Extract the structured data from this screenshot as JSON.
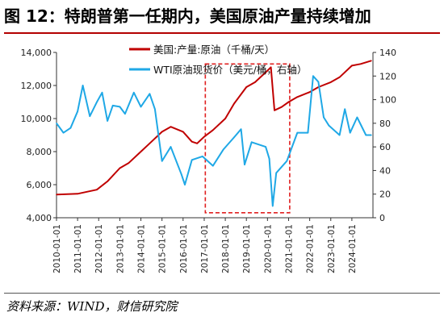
{
  "title": "图 12：特朗普第一任期内，美国原油产量持续增加",
  "source": "资料来源：WIND，财信研究院",
  "colors": {
    "us_production": "#c00000",
    "wti": "#1fa8e6",
    "highlight_box": "#e02020",
    "title_rule": "#b30000"
  },
  "chart_data": {
    "type": "line",
    "title": "",
    "legend_position": "top",
    "x_ticks": [
      "2010-01-01",
      "2011-01-01",
      "2012-01-01",
      "2013-01-01",
      "2014-01-01",
      "2015-01-01",
      "2016-01-01",
      "2017-01-01",
      "2018-01-01",
      "2019-01-01",
      "2020-01-01",
      "2021-01-01",
      "2022-01-01",
      "2023-01-01",
      "2024-01-01"
    ],
    "x_range": [
      "2010-01-01",
      "2024-12-31"
    ],
    "y_left": {
      "min": 4000,
      "max": 14000,
      "ticks": [
        "4,000",
        "6,000",
        "8,000",
        "10,000",
        "12,000",
        "14,000"
      ]
    },
    "y_right": {
      "min": 0,
      "max": 140,
      "ticks": [
        "0",
        "20",
        "40",
        "60",
        "80",
        "100",
        "120",
        "140"
      ]
    },
    "highlight_period": [
      "2017-01-20",
      "2021-01-20"
    ],
    "series": [
      {
        "name": "美国:产量:原油（千桶/天）",
        "axis": "left",
        "points": [
          [
            "2010-01-01",
            5400
          ],
          [
            "2011-01-01",
            5450
          ],
          [
            "2011-12-01",
            5700
          ],
          [
            "2012-06-01",
            6200
          ],
          [
            "2013-01-01",
            7000
          ],
          [
            "2013-06-01",
            7300
          ],
          [
            "2014-01-01",
            8000
          ],
          [
            "2014-06-01",
            8500
          ],
          [
            "2015-01-01",
            9200
          ],
          [
            "2015-06-01",
            9500
          ],
          [
            "2016-01-01",
            9200
          ],
          [
            "2016-06-01",
            8600
          ],
          [
            "2016-09-01",
            8500
          ],
          [
            "2017-01-01",
            8900
          ],
          [
            "2017-06-01",
            9300
          ],
          [
            "2018-01-01",
            10000
          ],
          [
            "2018-06-01",
            10900
          ],
          [
            "2019-01-01",
            11900
          ],
          [
            "2019-06-01",
            12200
          ],
          [
            "2020-01-01",
            12900
          ],
          [
            "2020-03-01",
            13100
          ],
          [
            "2020-05-01",
            10500
          ],
          [
            "2020-09-01",
            10700
          ],
          [
            "2021-01-01",
            11000
          ],
          [
            "2021-06-01",
            11300
          ],
          [
            "2022-01-01",
            11600
          ],
          [
            "2022-06-01",
            11900
          ],
          [
            "2023-01-01",
            12200
          ],
          [
            "2023-06-01",
            12500
          ],
          [
            "2024-01-01",
            13200
          ],
          [
            "2024-06-01",
            13300
          ],
          [
            "2024-12-01",
            13500
          ]
        ]
      },
      {
        "name": "WTI原油现货价（美元/桶，右轴）",
        "axis": "right",
        "points": [
          [
            "2010-01-01",
            80
          ],
          [
            "2010-05-01",
            72
          ],
          [
            "2010-09-01",
            76
          ],
          [
            "2011-01-01",
            90
          ],
          [
            "2011-04-01",
            112
          ],
          [
            "2011-08-01",
            86
          ],
          [
            "2011-12-01",
            98
          ],
          [
            "2012-03-01",
            106
          ],
          [
            "2012-06-01",
            82
          ],
          [
            "2012-09-01",
            95
          ],
          [
            "2013-01-01",
            94
          ],
          [
            "2013-04-01",
            88
          ],
          [
            "2013-09-01",
            106
          ],
          [
            "2014-01-01",
            94
          ],
          [
            "2014-06-01",
            105
          ],
          [
            "2014-09-01",
            92
          ],
          [
            "2015-01-01",
            48
          ],
          [
            "2015-06-01",
            60
          ],
          [
            "2015-12-01",
            37
          ],
          [
            "2016-02-01",
            28
          ],
          [
            "2016-06-01",
            49
          ],
          [
            "2016-12-01",
            52
          ],
          [
            "2017-06-01",
            44
          ],
          [
            "2017-12-01",
            58
          ],
          [
            "2018-06-01",
            68
          ],
          [
            "2018-10-01",
            75
          ],
          [
            "2018-12-01",
            45
          ],
          [
            "2019-04-01",
            64
          ],
          [
            "2019-12-01",
            60
          ],
          [
            "2020-02-01",
            50
          ],
          [
            "2020-04-01",
            10
          ],
          [
            "2020-06-01",
            38
          ],
          [
            "2020-12-01",
            48
          ],
          [
            "2021-06-01",
            72
          ],
          [
            "2021-12-01",
            72
          ],
          [
            "2022-03-01",
            120
          ],
          [
            "2022-06-01",
            115
          ],
          [
            "2022-09-01",
            85
          ],
          [
            "2022-12-01",
            78
          ],
          [
            "2023-06-01",
            70
          ],
          [
            "2023-09-01",
            92
          ],
          [
            "2023-12-01",
            72
          ],
          [
            "2024-04-01",
            85
          ],
          [
            "2024-09-01",
            70
          ],
          [
            "2024-12-01",
            70
          ]
        ]
      }
    ]
  }
}
